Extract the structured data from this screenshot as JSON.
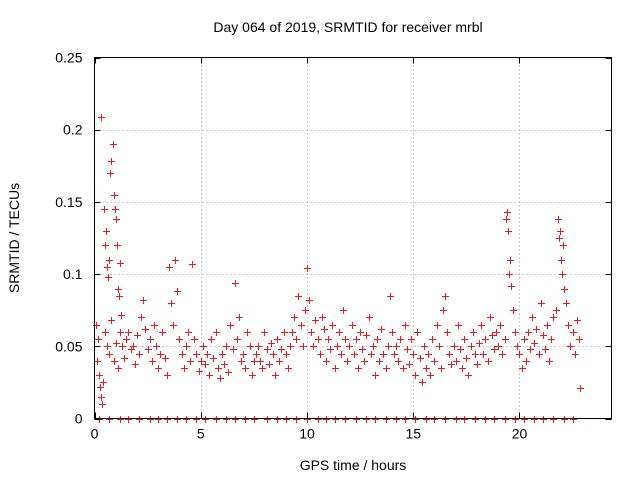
{
  "chart_data": {
    "type": "scatter",
    "title": "Day 064 of 2019, SRMTID for receiver mrbl",
    "xlabel": "GPS time / hours",
    "ylabel": "SRMTID / TECUs",
    "xlim": [
      0,
      24.33
    ],
    "ylim": [
      0,
      0.25
    ],
    "x_ticks": [
      0,
      5,
      10,
      15,
      20
    ],
    "x_tick_labels": [
      "0",
      "5",
      "10",
      "15",
      "20"
    ],
    "y_ticks": [
      0,
      0.05,
      0.1,
      0.15,
      0.2,
      0.25
    ],
    "y_tick_labels": [
      "0",
      "0.05",
      "0.1",
      "0.15",
      "0.2",
      "0.25"
    ],
    "grid": true,
    "marker": "+",
    "color": "#e41a1c",
    "series": [
      {
        "name": "SRMTID",
        "points": [
          [
            0.05,
            0.065
          ],
          [
            0.1,
            0.04
          ],
          [
            0.15,
            0.055
          ],
          [
            0.2,
            0.03
          ],
          [
            0.25,
            0.022
          ],
          [
            0.3,
            0.015
          ],
          [
            0.35,
            0.01
          ],
          [
            0.4,
            0.025
          ],
          [
            0.3,
            0.209
          ],
          [
            0.45,
            0.145
          ],
          [
            0.5,
            0.12
          ],
          [
            0.55,
            0.13
          ],
          [
            0.6,
            0.105
          ],
          [
            0.65,
            0.098
          ],
          [
            0.7,
            0.11
          ],
          [
            0.75,
            0.17
          ],
          [
            0.8,
            0.178
          ],
          [
            0.85,
            0.19
          ],
          [
            0.9,
            0.155
          ],
          [
            0.95,
            0.145
          ],
          [
            1.0,
            0.138
          ],
          [
            1.05,
            0.12
          ],
          [
            1.1,
            0.09
          ],
          [
            1.15,
            0.085
          ],
          [
            1.2,
            0.108
          ],
          [
            1.25,
            0.072
          ],
          [
            0.5,
            0.06
          ],
          [
            0.6,
            0.05
          ],
          [
            0.7,
            0.045
          ],
          [
            0.8,
            0.068
          ],
          [
            0.9,
            0.04
          ],
          [
            1.0,
            0.052
          ],
          [
            1.1,
            0.035
          ],
          [
            1.2,
            0.06
          ],
          [
            1.3,
            0.05
          ],
          [
            1.4,
            0.042
          ],
          [
            1.5,
            0.055
          ],
          [
            1.6,
            0.06
          ],
          [
            1.7,
            0.048
          ],
          [
            1.8,
            0.05
          ],
          [
            1.9,
            0.038
          ],
          [
            2.0,
            0.058
          ],
          [
            2.1,
            0.045
          ],
          [
            2.2,
            0.07
          ],
          [
            2.3,
            0.082
          ],
          [
            2.4,
            0.062
          ],
          [
            2.5,
            0.048
          ],
          [
            2.6,
            0.055
          ],
          [
            2.7,
            0.04
          ],
          [
            2.8,
            0.065
          ],
          [
            2.9,
            0.05
          ],
          [
            3.0,
            0.035
          ],
          [
            3.1,
            0.045
          ],
          [
            3.2,
            0.06
          ],
          [
            3.3,
            0.042
          ],
          [
            3.4,
            0.03
          ],
          [
            3.5,
            0.105
          ],
          [
            3.6,
            0.08
          ],
          [
            3.7,
            0.065
          ],
          [
            3.8,
            0.11
          ],
          [
            3.9,
            0.088
          ],
          [
            4.0,
            0.055
          ],
          [
            4.1,
            0.045
          ],
          [
            4.2,
            0.035
          ],
          [
            4.3,
            0.05
          ],
          [
            4.4,
            0.06
          ],
          [
            4.5,
            0.04
          ],
          [
            4.6,
            0.107
          ],
          [
            4.7,
            0.055
          ],
          [
            4.8,
            0.045
          ],
          [
            4.9,
            0.033
          ],
          [
            5.0,
            0.04
          ],
          [
            5.1,
            0.05
          ],
          [
            5.2,
            0.038
          ],
          [
            5.3,
            0.045
          ],
          [
            5.4,
            0.03
          ],
          [
            5.5,
            0.055
          ],
          [
            5.6,
            0.042
          ],
          [
            5.7,
            0.06
          ],
          [
            5.8,
            0.035
          ],
          [
            5.9,
            0.028
          ],
          [
            6.0,
            0.045
          ],
          [
            6.1,
            0.038
          ],
          [
            6.2,
            0.05
          ],
          [
            6.3,
            0.032
          ],
          [
            6.4,
            0.065
          ],
          [
            6.5,
            0.048
          ],
          [
            6.6,
            0.094
          ],
          [
            6.7,
            0.055
          ],
          [
            6.8,
            0.07
          ],
          [
            6.9,
            0.04
          ],
          [
            7.0,
            0.045
          ],
          [
            7.1,
            0.035
          ],
          [
            7.2,
            0.06
          ],
          [
            7.3,
            0.05
          ],
          [
            7.4,
            0.03
          ],
          [
            7.5,
            0.04
          ],
          [
            7.6,
            0.045
          ],
          [
            7.7,
            0.05
          ],
          [
            7.8,
            0.04
          ],
          [
            7.9,
            0.035
          ],
          [
            8.0,
            0.06
          ],
          [
            8.1,
            0.048
          ],
          [
            8.2,
            0.038
          ],
          [
            8.3,
            0.052
          ],
          [
            8.4,
            0.045
          ],
          [
            8.5,
            0.03
          ],
          [
            8.6,
            0.055
          ],
          [
            8.7,
            0.04
          ],
          [
            8.8,
            0.048
          ],
          [
            8.9,
            0.06
          ],
          [
            9.0,
            0.045
          ],
          [
            9.1,
            0.035
          ],
          [
            9.2,
            0.05
          ],
          [
            9.3,
            0.06
          ],
          [
            9.4,
            0.07
          ],
          [
            9.5,
            0.055
          ],
          [
            9.6,
            0.085
          ],
          [
            9.7,
            0.065
          ],
          [
            9.8,
            0.05
          ],
          [
            9.9,
            0.075
          ],
          [
            10.0,
            0.104
          ],
          [
            10.1,
            0.082
          ],
          [
            10.2,
            0.06
          ],
          [
            10.3,
            0.05
          ],
          [
            10.4,
            0.068
          ],
          [
            10.5,
            0.055
          ],
          [
            10.6,
            0.045
          ],
          [
            10.7,
            0.07
          ],
          [
            10.8,
            0.062
          ],
          [
            10.9,
            0.04
          ],
          [
            11.0,
            0.055
          ],
          [
            11.1,
            0.048
          ],
          [
            11.2,
            0.065
          ],
          [
            11.3,
            0.035
          ],
          [
            11.4,
            0.05
          ],
          [
            11.5,
            0.06
          ],
          [
            11.6,
            0.045
          ],
          [
            11.7,
            0.075
          ],
          [
            11.8,
            0.055
          ],
          [
            11.9,
            0.04
          ],
          [
            12.0,
            0.05
          ],
          [
            12.1,
            0.065
          ],
          [
            12.2,
            0.045
          ],
          [
            12.3,
            0.055
          ],
          [
            12.4,
            0.035
          ],
          [
            12.5,
            0.06
          ],
          [
            12.6,
            0.048
          ],
          [
            12.7,
            0.04
          ],
          [
            12.8,
            0.058
          ],
          [
            12.9,
            0.07
          ],
          [
            13.0,
            0.045
          ],
          [
            13.1,
            0.05
          ],
          [
            13.2,
            0.03
          ],
          [
            13.3,
            0.055
          ],
          [
            13.4,
            0.04
          ],
          [
            13.5,
            0.062
          ],
          [
            13.6,
            0.045
          ],
          [
            13.7,
            0.035
          ],
          [
            13.8,
            0.05
          ],
          [
            13.9,
            0.085
          ],
          [
            14.0,
            0.06
          ],
          [
            14.1,
            0.045
          ],
          [
            14.2,
            0.05
          ],
          [
            14.3,
            0.04
          ],
          [
            14.4,
            0.055
          ],
          [
            14.5,
            0.035
          ],
          [
            14.6,
            0.065
          ],
          [
            14.7,
            0.048
          ],
          [
            14.8,
            0.038
          ],
          [
            14.9,
            0.055
          ],
          [
            15.0,
            0.045
          ],
          [
            15.1,
            0.03
          ],
          [
            15.2,
            0.06
          ],
          [
            15.3,
            0.042
          ],
          [
            15.4,
            0.025
          ],
          [
            15.5,
            0.05
          ],
          [
            15.6,
            0.035
          ],
          [
            15.7,
            0.045
          ],
          [
            15.8,
            0.03
          ],
          [
            15.9,
            0.055
          ],
          [
            16.0,
            0.04
          ],
          [
            16.1,
            0.065
          ],
          [
            16.2,
            0.05
          ],
          [
            16.3,
            0.035
          ],
          [
            16.4,
            0.075
          ],
          [
            16.5,
            0.085
          ],
          [
            16.6,
            0.06
          ],
          [
            16.7,
            0.045
          ],
          [
            16.8,
            0.038
          ],
          [
            16.9,
            0.05
          ],
          [
            17.0,
            0.04
          ],
          [
            17.1,
            0.065
          ],
          [
            17.2,
            0.048
          ],
          [
            17.3,
            0.035
          ],
          [
            17.4,
            0.055
          ],
          [
            17.5,
            0.042
          ],
          [
            17.6,
            0.03
          ],
          [
            17.7,
            0.05
          ],
          [
            17.8,
            0.06
          ],
          [
            17.9,
            0.045
          ],
          [
            18.0,
            0.038
          ],
          [
            18.1,
            0.052
          ],
          [
            18.2,
            0.065
          ],
          [
            18.3,
            0.045
          ],
          [
            18.4,
            0.055
          ],
          [
            18.5,
            0.04
          ],
          [
            18.6,
            0.07
          ],
          [
            18.7,
            0.058
          ],
          [
            18.8,
            0.048
          ],
          [
            18.9,
            0.06
          ],
          [
            19.0,
            0.05
          ],
          [
            19.1,
            0.065
          ],
          [
            19.2,
            0.045
          ],
          [
            19.3,
            0.055
          ],
          [
            19.35,
            0.138
          ],
          [
            19.4,
            0.143
          ],
          [
            19.45,
            0.13
          ],
          [
            19.5,
            0.1
          ],
          [
            19.55,
            0.11
          ],
          [
            19.6,
            0.092
          ],
          [
            19.7,
            0.075
          ],
          [
            19.8,
            0.06
          ],
          [
            19.9,
            0.05
          ],
          [
            20.0,
            0.045
          ],
          [
            20.1,
            0.035
          ],
          [
            20.2,
            0.055
          ],
          [
            20.3,
            0.04
          ],
          [
            20.4,
            0.06
          ],
          [
            20.5,
            0.048
          ],
          [
            20.6,
            0.07
          ],
          [
            20.7,
            0.052
          ],
          [
            20.8,
            0.062
          ],
          [
            20.9,
            0.045
          ],
          [
            21.0,
            0.08
          ],
          [
            21.1,
            0.058
          ],
          [
            21.2,
            0.048
          ],
          [
            21.3,
            0.065
          ],
          [
            21.4,
            0.04
          ],
          [
            21.5,
            0.055
          ],
          [
            21.6,
            0.07
          ],
          [
            21.7,
            0.075
          ],
          [
            21.8,
            0.138
          ],
          [
            21.85,
            0.125
          ],
          [
            21.9,
            0.13
          ],
          [
            21.95,
            0.11
          ],
          [
            22.0,
            0.1
          ],
          [
            22.05,
            0.12
          ],
          [
            22.1,
            0.09
          ],
          [
            22.2,
            0.08
          ],
          [
            22.3,
            0.065
          ],
          [
            22.4,
            0.05
          ],
          [
            22.5,
            0.06
          ],
          [
            22.6,
            0.045
          ],
          [
            22.7,
            0.068
          ],
          [
            22.8,
            0.055
          ],
          [
            22.85,
            0.021
          ],
          [
            0.2,
            0
          ],
          [
            0.7,
            0
          ],
          [
            1.2,
            0
          ],
          [
            1.6,
            0
          ],
          [
            2.1,
            0
          ],
          [
            2.6,
            0
          ],
          [
            3.0,
            0
          ],
          [
            3.4,
            0
          ],
          [
            3.9,
            0
          ],
          [
            4.3,
            0
          ],
          [
            4.8,
            0
          ],
          [
            5.2,
            0
          ],
          [
            5.7,
            0
          ],
          [
            6.2,
            0
          ],
          [
            6.6,
            0
          ],
          [
            7.1,
            0
          ],
          [
            7.5,
            0
          ],
          [
            8.1,
            0
          ],
          [
            8.6,
            0
          ],
          [
            9.0,
            0
          ],
          [
            9.5,
            0
          ],
          [
            10.0,
            0
          ],
          [
            10.5,
            0
          ],
          [
            10.9,
            0
          ],
          [
            11.3,
            0
          ],
          [
            11.8,
            0
          ],
          [
            12.3,
            0
          ],
          [
            12.8,
            0
          ],
          [
            13.2,
            0
          ],
          [
            13.7,
            0
          ],
          [
            14.2,
            0
          ],
          [
            14.6,
            0
          ],
          [
            15.1,
            0
          ],
          [
            15.6,
            0
          ],
          [
            16.0,
            0
          ],
          [
            16.5,
            0
          ],
          [
            17.0,
            0
          ],
          [
            17.4,
            0
          ],
          [
            17.9,
            0
          ],
          [
            18.4,
            0
          ],
          [
            18.8,
            0
          ],
          [
            19.3,
            0
          ],
          [
            19.8,
            0
          ],
          [
            20.2,
            0
          ],
          [
            20.7,
            0
          ],
          [
            21.1,
            0
          ],
          [
            21.6,
            0
          ],
          [
            22.1,
            0
          ],
          [
            22.5,
            0
          ]
        ]
      }
    ]
  }
}
